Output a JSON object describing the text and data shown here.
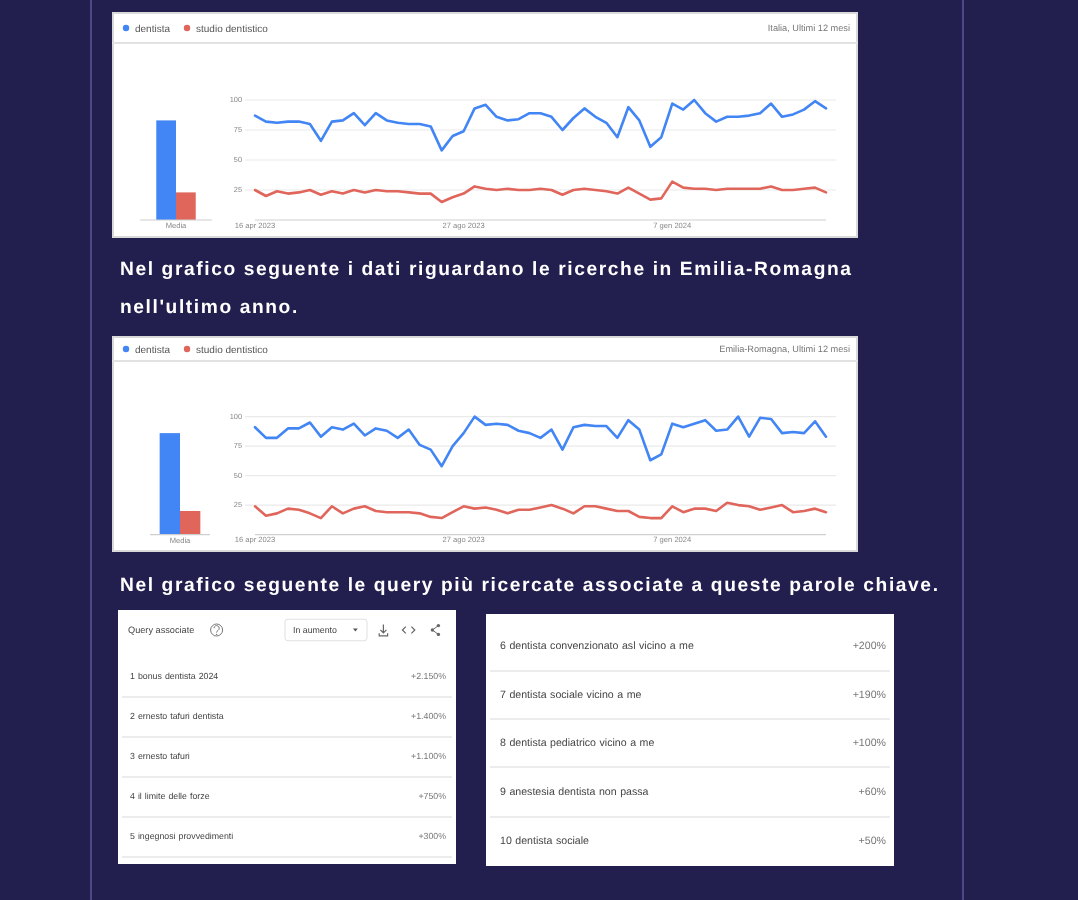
{
  "chart_data": [
    {
      "type": "bar",
      "categories": [
        "Media"
      ],
      "series": [
        {
          "color": "#4285f4",
          "values": [
            83
          ]
        },
        {
          "color": "#e0655b",
          "values": [
            23
          ]
        }
      ],
      "ylim": [
        0,
        100
      ],
      "tick_labels": "x"
    },
    {
      "type": "line",
      "subtitle": "Italia, Ultimi 12 mesi",
      "x": [
        "2023-04-16",
        "2023-04-23",
        "2023-04-30",
        "2023-05-07",
        "2023-05-14",
        "2023-05-21",
        "2023-05-28",
        "2023-06-04",
        "2023-06-11",
        "2023-06-18",
        "2023-06-25",
        "2023-07-02",
        "2023-07-09",
        "2023-07-16",
        "2023-07-23",
        "2023-07-30",
        "2023-08-06",
        "2023-08-13",
        "2023-08-20",
        "2023-08-27",
        "2023-09-03",
        "2023-09-10",
        "2023-09-17",
        "2023-09-24",
        "2023-10-01",
        "2023-10-08",
        "2023-10-15",
        "2023-10-22",
        "2023-10-29",
        "2023-11-05",
        "2023-11-12",
        "2023-11-19",
        "2023-11-26",
        "2023-12-03",
        "2023-12-10",
        "2023-12-17",
        "2023-12-24",
        "2023-12-31",
        "2024-01-07",
        "2024-01-14",
        "2024-01-21",
        "2024-01-28",
        "2024-02-04",
        "2024-02-11",
        "2024-02-18",
        "2024-02-25",
        "2024-03-03",
        "2024-03-10",
        "2024-03-17",
        "2024-03-24",
        "2024-03-31",
        "2024-04-07",
        "2024-04-14"
      ],
      "xlim": [
        "2023-04-16",
        "2024-04-14"
      ],
      "xticks": [
        {
          "value": "2023-04-16",
          "label": "16 apr 2023"
        },
        {
          "value": "2023-08-27",
          "label": "27 ago 2023"
        },
        {
          "value": "2024-01-07",
          "label": "7 gen 2024"
        }
      ],
      "ylim": [
        0,
        100
      ],
      "yticks": [
        25,
        50,
        75,
        100
      ],
      "grid": "y",
      "legend": "top left",
      "series": [
        {
          "name": "dentista",
          "color": "#4285f4",
          "values": [
            87,
            82,
            81,
            82,
            82,
            80,
            66,
            82,
            83,
            89,
            79,
            89,
            83,
            81,
            80,
            80,
            78,
            58,
            70,
            74,
            93,
            96,
            86,
            83,
            84,
            89,
            89,
            86,
            75,
            85,
            93,
            86,
            81,
            69,
            94,
            83,
            61,
            69,
            97,
            92,
            100,
            89,
            82,
            86,
            86,
            87,
            89,
            97,
            86,
            88,
            92,
            99,
            93
          ]
        },
        {
          "name": "studio dentistico",
          "color": "#e0655b",
          "values": [
            25,
            20,
            24,
            22,
            23,
            25,
            21,
            24,
            22,
            25,
            23,
            25,
            24,
            24,
            23,
            22,
            22,
            15,
            19,
            22,
            28,
            26,
            25,
            26,
            25,
            25,
            26,
            25,
            21,
            25,
            26,
            25,
            24,
            22,
            27,
            22,
            17,
            18,
            32,
            27,
            26,
            26,
            25,
            26,
            26,
            26,
            26,
            28,
            25,
            25,
            26,
            27,
            23
          ]
        }
      ]
    },
    {
      "type": "bar",
      "categories": [
        "Media"
      ],
      "series": [
        {
          "color": "#4285f4",
          "values": [
            86
          ]
        },
        {
          "color": "#e0655b",
          "values": [
            20
          ]
        }
      ],
      "ylim": [
        0,
        100
      ],
      "tick_labels": "x"
    },
    {
      "type": "line",
      "title": "Nel grafico seguente i dati riguardano le ricerche in Emilia-Romagna nell'ultimo anno.",
      "subtitle": "Emilia-Romagna, Ultimi 12 mesi",
      "x": [
        "2023-04-16",
        "2023-04-23",
        "2023-04-30",
        "2023-05-07",
        "2023-05-14",
        "2023-05-21",
        "2023-05-28",
        "2023-06-04",
        "2023-06-11",
        "2023-06-18",
        "2023-06-25",
        "2023-07-02",
        "2023-07-09",
        "2023-07-16",
        "2023-07-23",
        "2023-07-30",
        "2023-08-06",
        "2023-08-13",
        "2023-08-20",
        "2023-08-27",
        "2023-09-03",
        "2023-09-10",
        "2023-09-17",
        "2023-09-24",
        "2023-10-01",
        "2023-10-08",
        "2023-10-15",
        "2023-10-22",
        "2023-10-29",
        "2023-11-05",
        "2023-11-12",
        "2023-11-19",
        "2023-11-26",
        "2023-12-03",
        "2023-12-10",
        "2023-12-17",
        "2023-12-24",
        "2023-12-31",
        "2024-01-07",
        "2024-01-14",
        "2024-01-21",
        "2024-01-28",
        "2024-02-04",
        "2024-02-11",
        "2024-02-18",
        "2024-02-25",
        "2024-03-03",
        "2024-03-10",
        "2024-03-17",
        "2024-03-24",
        "2024-03-31",
        "2024-04-07",
        "2024-04-14"
      ],
      "xlim": [
        "2023-04-16",
        "2024-04-14"
      ],
      "xticks": [
        {
          "value": "2023-04-16",
          "label": "16 apr 2023"
        },
        {
          "value": "2023-08-27",
          "label": "27 ago 2023"
        },
        {
          "value": "2024-01-07",
          "label": "7 gen 2024"
        }
      ],
      "ylim": [
        0,
        100
      ],
      "yticks": [
        25,
        50,
        75,
        100
      ],
      "grid": "y",
      "legend": "top left",
      "series": [
        {
          "name": "dentista",
          "color": "#4285f4",
          "values": [
            91,
            82,
            82,
            90,
            90,
            95,
            83,
            91,
            89,
            94,
            84,
            90,
            88,
            82,
            89,
            76,
            72,
            58,
            75,
            86,
            100,
            93,
            94,
            93,
            88,
            86,
            82,
            89,
            72,
            91,
            93,
            92,
            92,
            82,
            97,
            89,
            63,
            68,
            94,
            91,
            94,
            97,
            88,
            89,
            100,
            83,
            99,
            98,
            86,
            87,
            86,
            96,
            83
          ]
        },
        {
          "name": "studio dentistico",
          "color": "#e0655b",
          "values": [
            24,
            16,
            18,
            22,
            21,
            18,
            14,
            24,
            18,
            22,
            24,
            20,
            19,
            19,
            19,
            18,
            15,
            14,
            19,
            24,
            22,
            23,
            21,
            18,
            21,
            21,
            23,
            25,
            22,
            18,
            24,
            24,
            22,
            20,
            20,
            15,
            14,
            14,
            24,
            19,
            22,
            22,
            20,
            27,
            25,
            24,
            21,
            23,
            25,
            19,
            20,
            22,
            19
          ]
        }
      ]
    },
    {
      "type": "other",
      "title": "Nel grafico seguente le query più ricercate associate a queste parole chiave.",
      "annotations": [
        "Query associate",
        "In aumento"
      ],
      "categories": [
        "1 bonus dentista 2024",
        "2 ernesto tafuri dentista",
        "3 ernesto tafuri",
        "4 il limite delle forze",
        "5 ingegnosi provvedimenti",
        "6 dentista convenzionato asl vicino a me",
        "7 dentista sociale vicino a me",
        "8 dentista pediatrico vicino a me",
        "9 anestesia dentista non passa",
        "10 dentista sociale"
      ],
      "value_labels": [
        "+2.150%",
        "+1.400%",
        "+1.100%",
        "+750%",
        "+300%",
        "+200%",
        "+190%",
        "+100%",
        "+60%",
        "+50%"
      ]
    }
  ]
}
